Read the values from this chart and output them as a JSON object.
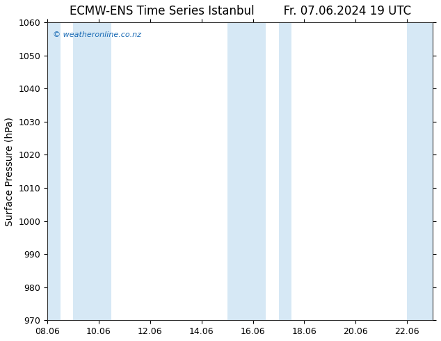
{
  "title_left": "ECMW-ENS Time Series Istanbul",
  "title_right": "Fr. 07.06.2024 19 UTC",
  "ylabel": "Surface Pressure (hPa)",
  "ylim": [
    970,
    1060
  ],
  "yticks": [
    970,
    980,
    990,
    1000,
    1010,
    1020,
    1030,
    1040,
    1050,
    1060
  ],
  "xlim_start": 8.06,
  "xlim_end": 23.06,
  "xtick_labels": [
    "08.06",
    "10.06",
    "12.06",
    "14.06",
    "16.06",
    "18.06",
    "20.06",
    "22.06"
  ],
  "xtick_positions": [
    8.06,
    10.06,
    12.06,
    14.06,
    16.06,
    18.06,
    20.06,
    22.06
  ],
  "shaded_bands": [
    {
      "xmin": 8.06,
      "xmax": 8.56
    },
    {
      "xmin": 9.06,
      "xmax": 10.56
    },
    {
      "xmin": 15.06,
      "xmax": 16.56
    },
    {
      "xmin": 17.06,
      "xmax": 17.56
    },
    {
      "xmin": 22.06,
      "xmax": 23.06
    }
  ],
  "band_color": "#d6e8f5",
  "background_color": "#ffffff",
  "plot_bg_color": "#ffffff",
  "watermark_text": "© weatheronline.co.nz",
  "watermark_color": "#1a6bb5",
  "title_fontsize": 12,
  "tick_fontsize": 9,
  "ylabel_fontsize": 10,
  "spine_color": "#333333"
}
